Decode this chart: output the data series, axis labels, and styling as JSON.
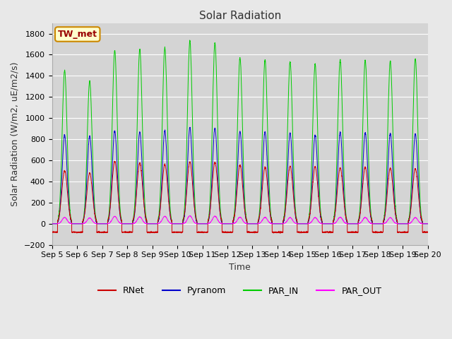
{
  "title": "Solar Radiation",
  "ylabel": "Solar Radiation (W/m2, uE/m2/s)",
  "xlabel": "Time",
  "station_label": "TW_met",
  "ylim": [
    -200,
    1900
  ],
  "yticks": [
    -200,
    0,
    200,
    400,
    600,
    800,
    1000,
    1200,
    1400,
    1600,
    1800
  ],
  "date_start": 5,
  "date_end": 20,
  "x_tick_labels": [
    "Sep 5",
    "Sep 6",
    "Sep 7",
    "Sep 8",
    "Sep 9",
    "Sep 10",
    "Sep 11",
    "Sep 12",
    "Sep 13",
    "Sep 14",
    "Sep 15",
    "Sep 16",
    "Sep 17",
    "Sep 18",
    "Sep 19",
    "Sep 20"
  ],
  "colors": {
    "RNet": "#cc0000",
    "Pyranom": "#0000cc",
    "PAR_IN": "#00cc00",
    "PAR_OUT": "#ff00ff"
  },
  "background_color": "#e8e8e8",
  "plot_bg_color": "#d4d4d4",
  "grid_color": "#ffffff",
  "title_fontsize": 11,
  "label_fontsize": 9,
  "tick_fontsize": 8,
  "legend_fontsize": 9,
  "station_box_color": "#ffffcc",
  "station_box_edge": "#cc8800",
  "station_text_color": "#990000",
  "par_in_peaks": [
    1450,
    1350,
    1640,
    1650,
    1670,
    1730,
    1710,
    1570,
    1550,
    1530,
    1510,
    1550,
    1550,
    1540,
    1560
  ],
  "pyranom_peaks": [
    840,
    830,
    880,
    870,
    880,
    910,
    905,
    875,
    870,
    860,
    840,
    865,
    860,
    855,
    850
  ],
  "rnet_peaks": [
    500,
    480,
    590,
    575,
    560,
    585,
    580,
    555,
    535,
    545,
    540,
    530,
    535,
    525,
    520
  ],
  "par_out_peaks": [
    60,
    55,
    70,
    65,
    70,
    75,
    72,
    62,
    60,
    58,
    58,
    62,
    60,
    58,
    58
  ]
}
